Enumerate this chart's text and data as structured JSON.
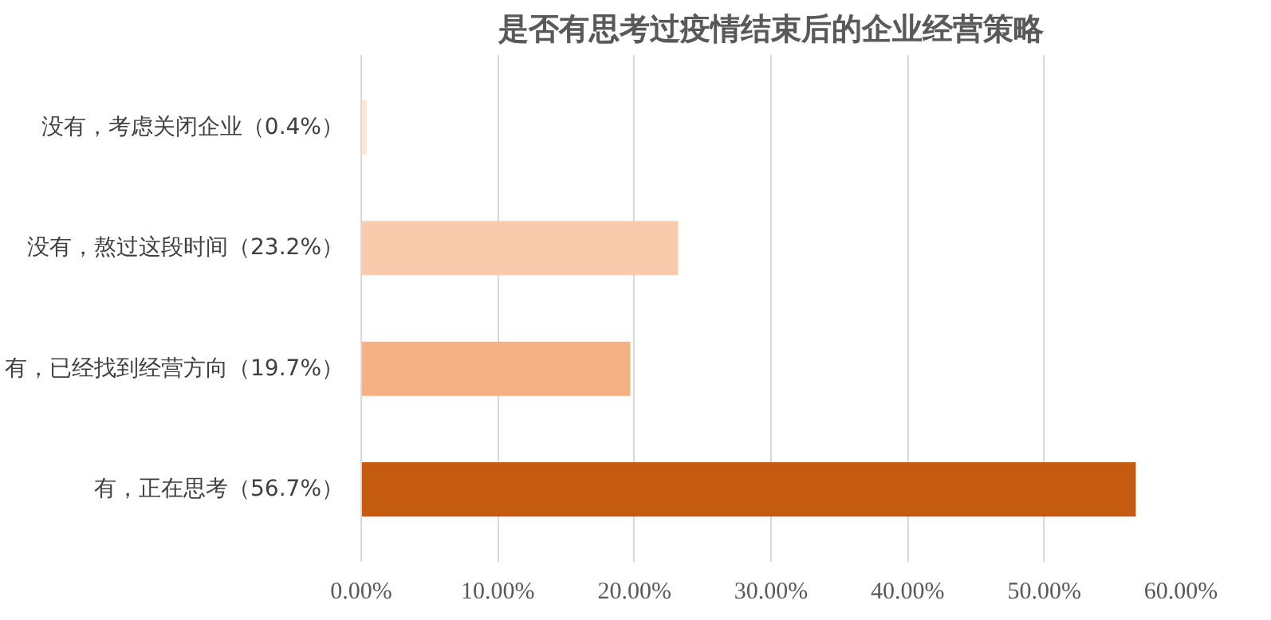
{
  "chart_data": {
    "type": "bar",
    "orientation": "horizontal",
    "title": "是否有思考过疫情结束后的企业经营策略",
    "categories": [
      "没有，考虑关闭企业（0.4%）",
      "没有，熬过这段时间（23.2%）",
      "有，已经找到经营方向（19.7%）",
      "有，正在思考（56.7%）"
    ],
    "values": [
      0.4,
      23.2,
      19.7,
      56.7
    ],
    "colors": [
      "#fbe5d6",
      "#f8cbad",
      "#f4b183",
      "#c55a11"
    ],
    "xlim": [
      0,
      60
    ],
    "xticks": [
      {
        "value": 0,
        "label": "0.00%"
      },
      {
        "value": 10,
        "label": "10.00%"
      },
      {
        "value": 20,
        "label": "20.00%"
      },
      {
        "value": 30,
        "label": "30.00%"
      },
      {
        "value": 40,
        "label": "40.00%"
      },
      {
        "value": 50,
        "label": "50.00%"
      },
      {
        "value": 60,
        "label": "60.00%"
      }
    ],
    "grid": "x"
  }
}
